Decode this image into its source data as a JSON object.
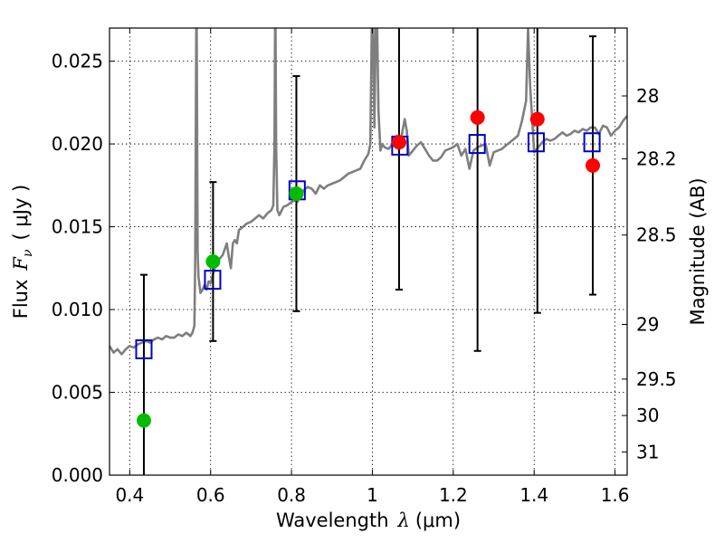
{
  "chart_data": {
    "type": "scatter",
    "title": "",
    "xlabel": "Wavelength",
    "xlabel_symbol": "λ",
    "xlabel_unit": "(μm)",
    "ylabel": "Flux",
    "ylabel_symbol": "F",
    "ylabel_subscript": "ν",
    "ylabel_unit": "( μJy )",
    "y2label": "Magnitude (AB)",
    "xlim": [
      0.35,
      1.63
    ],
    "ylim": [
      0.0,
      0.027
    ],
    "grid": true,
    "x_ticks": [
      0.4,
      0.6,
      0.8,
      1.0,
      1.2,
      1.4,
      1.6
    ],
    "x_tick_labels": [
      "0.4",
      "0.6",
      "0.8",
      "1",
      "1.2",
      "1.4",
      "1.6"
    ],
    "y_ticks": [
      0.0,
      0.005,
      0.01,
      0.015,
      0.02,
      0.025
    ],
    "y_tick_labels": [
      "0.000",
      "0.005",
      "0.010",
      "0.015",
      "0.020",
      "0.025"
    ],
    "y2_ticks": [
      {
        "label": "28",
        "flux": 0.0229
      },
      {
        "label": "28.2",
        "flux": 0.0191
      },
      {
        "label": "28.5",
        "flux": 0.0145
      },
      {
        "label": "29",
        "flux": 0.0091
      },
      {
        "label": "29.5",
        "flux": 0.0058
      },
      {
        "label": "30",
        "flux": 0.0036
      },
      {
        "label": "31",
        "flux": 0.0014
      }
    ],
    "series": [
      {
        "name": "model spectrum",
        "kind": "line",
        "color": "#7f7f7f",
        "x": [
          0.35,
          0.36,
          0.37,
          0.38,
          0.39,
          0.4,
          0.41,
          0.42,
          0.43,
          0.44,
          0.45,
          0.46,
          0.47,
          0.48,
          0.49,
          0.5,
          0.51,
          0.52,
          0.53,
          0.54,
          0.55,
          0.555,
          0.56,
          0.562,
          0.565,
          0.568,
          0.57,
          0.575,
          0.58,
          0.585,
          0.59,
          0.595,
          0.6,
          0.61,
          0.62,
          0.63,
          0.64,
          0.645,
          0.65,
          0.655,
          0.66,
          0.665,
          0.67,
          0.68,
          0.69,
          0.7,
          0.71,
          0.72,
          0.73,
          0.74,
          0.75,
          0.755,
          0.758,
          0.76,
          0.762,
          0.765,
          0.77,
          0.78,
          0.79,
          0.8,
          0.81,
          0.815,
          0.82,
          0.83,
          0.84,
          0.85,
          0.86,
          0.87,
          0.88,
          0.89,
          0.9,
          0.91,
          0.92,
          0.93,
          0.94,
          0.95,
          0.96,
          0.97,
          0.98,
          0.99,
          0.995,
          1.0,
          1.005,
          1.01,
          1.015,
          1.02,
          1.025,
          1.03,
          1.04,
          1.05,
          1.06,
          1.07,
          1.08,
          1.085,
          1.09,
          1.1,
          1.11,
          1.12,
          1.13,
          1.14,
          1.15,
          1.16,
          1.17,
          1.18,
          1.19,
          1.2,
          1.21,
          1.22,
          1.23,
          1.24,
          1.25,
          1.26,
          1.27,
          1.28,
          1.29,
          1.3,
          1.31,
          1.32,
          1.33,
          1.34,
          1.35,
          1.36,
          1.37,
          1.38,
          1.385,
          1.39,
          1.4,
          1.41,
          1.42,
          1.43,
          1.44,
          1.45,
          1.46,
          1.47,
          1.48,
          1.49,
          1.5,
          1.51,
          1.52,
          1.53,
          1.54,
          1.55,
          1.56,
          1.57,
          1.58,
          1.59,
          1.6,
          1.61,
          1.62,
          1.63
        ],
        "y": [
          0.0078,
          0.0074,
          0.0076,
          0.0073,
          0.0076,
          0.0078,
          0.0077,
          0.0079,
          0.008,
          0.0081,
          0.008,
          0.0082,
          0.0083,
          0.0082,
          0.0084,
          0.0083,
          0.0083,
          0.0085,
          0.0084,
          0.0086,
          0.0084,
          0.0086,
          0.009,
          0.013,
          0.03,
          0.0135,
          0.012,
          0.011,
          0.0112,
          0.0115,
          0.0112,
          0.0117,
          0.0116,
          0.0125,
          0.013,
          0.0133,
          0.014,
          0.0132,
          0.0125,
          0.014,
          0.0142,
          0.014,
          0.0148,
          0.015,
          0.0152,
          0.0153,
          0.0155,
          0.0157,
          0.0155,
          0.0158,
          0.016,
          0.0163,
          0.02,
          0.03,
          0.02,
          0.016,
          0.0157,
          0.0162,
          0.0163,
          0.0165,
          0.0166,
          0.0165,
          0.0168,
          0.0172,
          0.0174,
          0.0173,
          0.017,
          0.0175,
          0.0173,
          0.0175,
          0.0176,
          0.0177,
          0.0178,
          0.018,
          0.0182,
          0.0183,
          0.0184,
          0.0185,
          0.019,
          0.0194,
          0.02,
          0.03,
          0.021,
          0.03,
          0.022,
          0.0196,
          0.02,
          0.0198,
          0.0197,
          0.02,
          0.0205,
          0.0202,
          0.0215,
          0.0208,
          0.0193,
          0.0196,
          0.0199,
          0.0201,
          0.0197,
          0.0193,
          0.019,
          0.019,
          0.0192,
          0.0196,
          0.0197,
          0.0198,
          0.02,
          0.0193,
          0.0197,
          0.0185,
          0.0196,
          0.0198,
          0.0199,
          0.02,
          0.0187,
          0.0195,
          0.0196,
          0.0197,
          0.0199,
          0.0201,
          0.0203,
          0.0205,
          0.0214,
          0.0226,
          0.027,
          0.0235,
          0.0195,
          0.0198,
          0.0201,
          0.0203,
          0.0202,
          0.0203,
          0.0205,
          0.0207,
          0.0205,
          0.0206,
          0.0208,
          0.0207,
          0.0209,
          0.0208,
          0.021,
          0.021,
          0.0206,
          0.0211,
          0.021,
          0.0205,
          0.0208,
          0.021,
          0.0214,
          0.0217
        ]
      },
      {
        "name": "model photometry",
        "kind": "square",
        "color": "#0000cc",
        "x": [
          0.435,
          0.605,
          0.814,
          1.068,
          1.259,
          1.405,
          1.543
        ],
        "y": [
          0.0076,
          0.0118,
          0.0172,
          0.0199,
          0.02,
          0.0201,
          0.0201
        ]
      },
      {
        "name": "observed fluxes",
        "kind": "errorbar",
        "color": "#000000",
        "x": [
          0.435,
          0.606,
          0.812,
          1.066,
          1.26,
          1.408,
          1.545
        ],
        "y": [
          0.0033,
          0.0129,
          0.017,
          0.0201,
          0.0216,
          0.0215,
          0.0187
        ],
        "yerr_low": [
          0.0033,
          0.0048,
          0.0071,
          0.0089,
          0.0141,
          0.0117,
          0.0078
        ],
        "yerr_high": [
          0.0088,
          0.0048,
          0.0071,
          0.0089,
          0.0141,
          0.0117,
          0.0078
        ]
      },
      {
        "name": "detections (green)",
        "kind": "circle",
        "color": "#00bb00",
        "x": [
          0.435,
          0.606,
          0.812
        ],
        "y": [
          0.0033,
          0.0129,
          0.017
        ]
      },
      {
        "name": "detections (red)",
        "kind": "circle",
        "color": "#ff0000",
        "x": [
          1.066,
          1.26,
          1.408,
          1.545
        ],
        "y": [
          0.0201,
          0.0216,
          0.0215,
          0.0187
        ]
      }
    ]
  }
}
